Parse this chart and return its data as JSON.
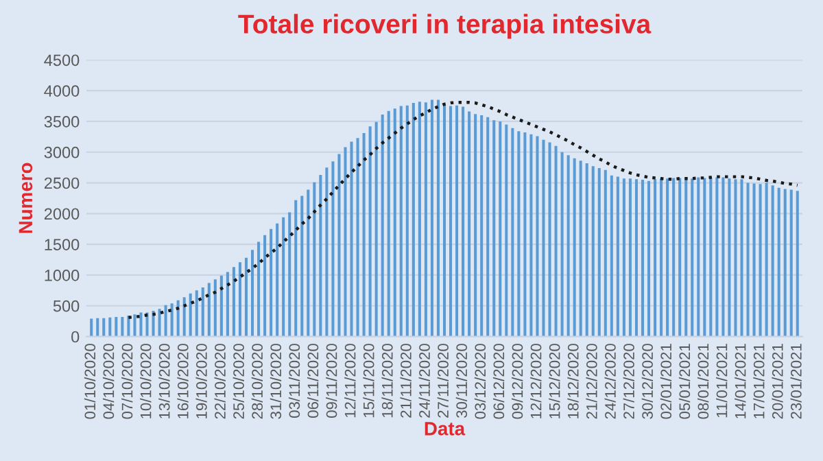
{
  "chart_data": {
    "type": "bar",
    "title": "Totale ricoveri in terapia intesiva",
    "xlabel": "Data",
    "ylabel": "Numero",
    "categories": [
      "01/10/2020",
      null,
      null,
      "04/10/2020",
      null,
      null,
      "07/10/2020",
      null,
      null,
      "10/10/2020",
      null,
      null,
      "13/10/2020",
      null,
      null,
      "16/10/2020",
      null,
      null,
      "19/10/2020",
      null,
      null,
      "22/10/2020",
      null,
      null,
      "25/10/2020",
      null,
      null,
      "28/10/2020",
      null,
      null,
      "31/10/2020",
      null,
      null,
      "03/11/2020",
      null,
      null,
      "06/11/2020",
      null,
      null,
      "09/11/2020",
      null,
      null,
      "12/11/2020",
      null,
      null,
      "15/11/2020",
      null,
      null,
      "18/11/2020",
      null,
      null,
      "21/11/2020",
      null,
      null,
      "24/11/2020",
      null,
      null,
      "27/11/2020",
      null,
      null,
      "30/11/2020",
      null,
      null,
      "03/12/2020",
      null,
      null,
      "06/12/2020",
      null,
      null,
      "09/12/2020",
      null,
      null,
      "12/12/2020",
      null,
      null,
      "15/12/2020",
      null,
      null,
      "18/12/2020",
      null,
      null,
      "21/12/2020",
      null,
      null,
      "24/12/2020",
      null,
      null,
      "27/12/2020",
      null,
      null,
      "30/12/2020",
      null,
      null,
      "02/01/2021",
      null,
      null,
      "05/01/2021",
      null,
      null,
      "08/01/2021",
      null,
      null,
      "11/01/2021",
      null,
      null,
      "14/01/2021",
      null,
      null,
      "17/01/2021",
      null,
      null,
      "20/01/2021",
      null,
      null,
      "23/01/2021"
    ],
    "series": [
      {
        "color": "#5b9bd5",
        "values": [
          290,
          300,
          300,
          310,
          320,
          320,
          340,
          360,
          390,
          390,
          420,
          450,
          510,
          540,
          590,
          640,
          700,
          750,
          800,
          870,
          930,
          990,
          1050,
          1130,
          1210,
          1280,
          1410,
          1540,
          1650,
          1750,
          1840,
          1940,
          2020,
          2220,
          2290,
          2390,
          2510,
          2630,
          2750,
          2850,
          2970,
          3080,
          3170,
          3230,
          3310,
          3420,
          3490,
          3610,
          3670,
          3710,
          3750,
          3760,
          3800,
          3820,
          3810,
          3850,
          3850,
          3780,
          3750,
          3760,
          3740,
          3660,
          3620,
          3600,
          3570,
          3520,
          3500,
          3450,
          3390,
          3340,
          3320,
          3290,
          3260,
          3200,
          3160,
          3100,
          3000,
          2950,
          2900,
          2860,
          2820,
          2770,
          2740,
          2710,
          2620,
          2600,
          2570,
          2570,
          2560,
          2550,
          2530,
          2560,
          2570,
          2570,
          2580,
          2580,
          2580,
          2570,
          2590,
          2580,
          2580,
          2590,
          2590,
          2570,
          2560,
          2560,
          2500,
          2490,
          2480,
          2500,
          2460,
          2420,
          2400,
          2390,
          2370
        ]
      },
      {
        "type": "line",
        "color": "#1a1a1a",
        "line_style": "dotted",
        "values": [
          null,
          null,
          null,
          null,
          null,
          null,
          310,
          320,
          330,
          350,
          360,
          380,
          410,
          430,
          460,
          500,
          540,
          580,
          630,
          680,
          720,
          780,
          840,
          900,
          970,
          1040,
          1110,
          1190,
          1280,
          1360,
          1440,
          1540,
          1630,
          1730,
          1830,
          1920,
          2030,
          2140,
          2240,
          2350,
          2460,
          2570,
          2670,
          2770,
          2870,
          2960,
          3060,
          3150,
          3230,
          3310,
          3390,
          3460,
          3530,
          3590,
          3640,
          3700,
          3740,
          3780,
          3800,
          3810,
          3810,
          3810,
          3800,
          3770,
          3740,
          3700,
          3660,
          3610,
          3570,
          3530,
          3490,
          3450,
          3410,
          3370,
          3330,
          3280,
          3230,
          3180,
          3120,
          3070,
          3010,
          2950,
          2890,
          2840,
          2780,
          2740,
          2700,
          2660,
          2630,
          2610,
          2590,
          2580,
          2570,
          2560,
          2560,
          2570,
          2570,
          2570,
          2580,
          2580,
          2590,
          2600,
          2600,
          2600,
          2600,
          2600,
          2590,
          2580,
          2560,
          2540,
          2530,
          2510,
          2490,
          2480,
          2460
        ]
      }
    ],
    "ylim": [
      0,
      4500
    ],
    "yticks": [
      0,
      500,
      1000,
      1500,
      2000,
      2500,
      3000,
      3500,
      4000,
      4500
    ],
    "grid": "y"
  }
}
